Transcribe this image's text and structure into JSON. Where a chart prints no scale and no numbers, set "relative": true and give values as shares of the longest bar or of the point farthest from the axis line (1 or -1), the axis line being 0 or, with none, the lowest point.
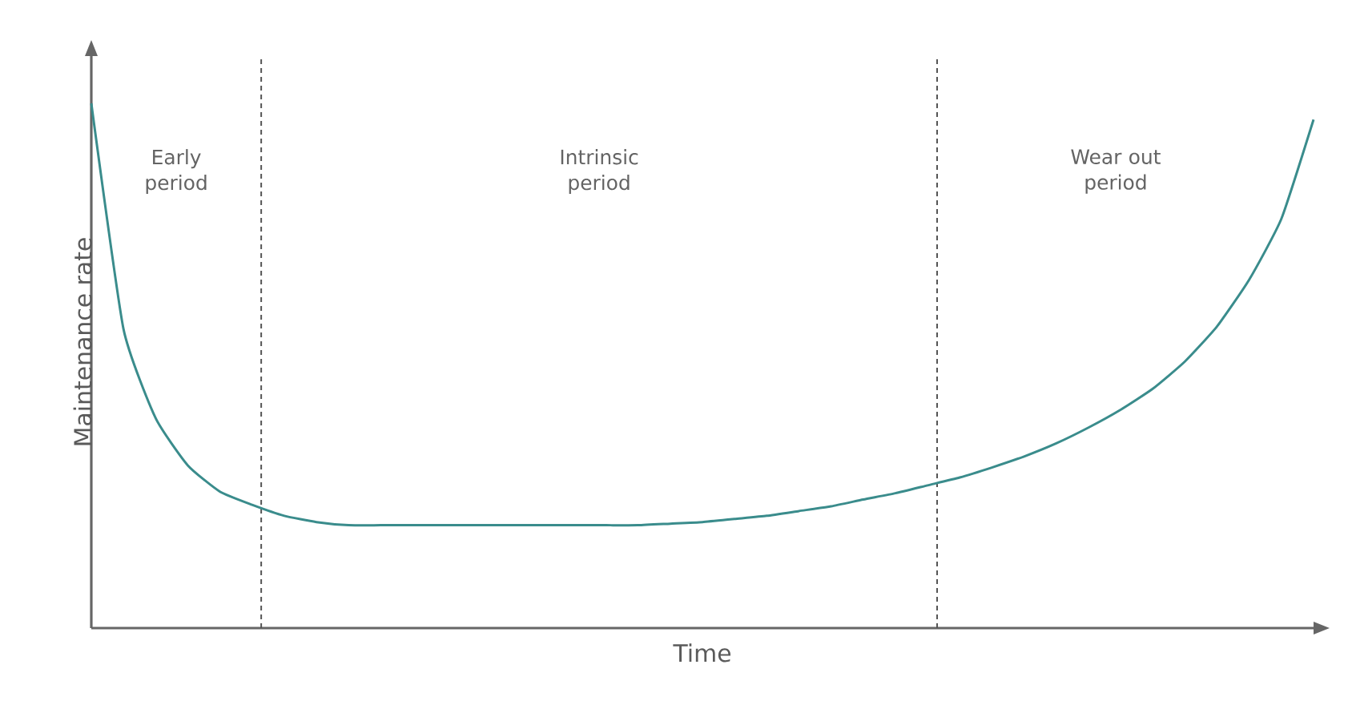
{
  "chart_data": {
    "type": "line",
    "relative": true,
    "xlabel": "Time",
    "ylabel": "Maintenance rate",
    "color": "#3a8c8c",
    "categories": [
      null,
      null,
      null,
      null,
      null,
      null,
      null,
      null,
      null,
      null,
      null,
      null,
      null,
      null,
      null,
      null,
      null,
      null,
      null,
      null,
      null,
      null,
      null,
      null,
      null,
      null,
      null,
      null,
      null,
      null,
      null,
      null,
      null,
      null,
      null,
      null,
      null,
      null,
      null
    ],
    "values": [
      1.0,
      0.57,
      0.4,
      0.31,
      0.26,
      0.235,
      0.214,
      0.202,
      0.196,
      0.196,
      0.196,
      0.196,
      0.196,
      0.196,
      0.196,
      0.196,
      0.196,
      0.196,
      0.199,
      0.202,
      0.208,
      0.214,
      0.223,
      0.232,
      0.245,
      0.257,
      0.272,
      0.287,
      0.306,
      0.327,
      0.352,
      0.382,
      0.416,
      0.456,
      0.508,
      0.575,
      0.664,
      0.78,
      0.969
    ],
    "annotations": [
      "Early period",
      "Intrinsic period",
      "Wear out period"
    ]
  }
}
